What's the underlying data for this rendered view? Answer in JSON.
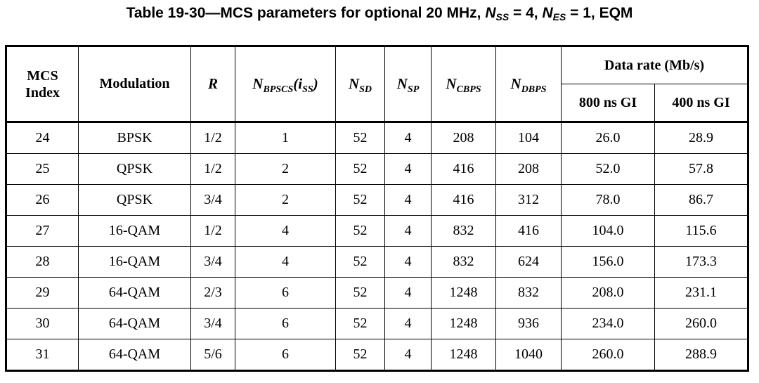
{
  "title": {
    "prefix": "Table 19-30—MCS parameters for optional 20 MHz, ",
    "nss_symbol": "N",
    "nss_sub": "SS",
    "nss_value": " = 4, ",
    "nes_symbol": "N",
    "nes_sub": "ES",
    "nes_value": " = 1, EQM"
  },
  "headers": {
    "mcs_line1": "MCS",
    "mcs_line2": "Index",
    "modulation": "Modulation",
    "r": "R",
    "nbpscs_symbol": "N",
    "nbpscs_sub": "BPSCS",
    "nbpscs_paren_open": "(i",
    "nbpscs_paren_sub": "SS",
    "nbpscs_paren_close": ")",
    "nsd_symbol": "N",
    "nsd_sub": "SD",
    "nsp_symbol": "N",
    "nsp_sub": "SP",
    "ncbps_symbol": "N",
    "ncbps_sub": "CBPS",
    "ndbps_symbol": "N",
    "ndbps_sub": "DBPS",
    "data_rate": "Data rate (Mb/s)",
    "gi800": "800 ns GI",
    "gi400": "400 ns GI"
  },
  "rows": [
    {
      "mcs": "24",
      "mod": "BPSK",
      "r": "1/2",
      "nbpscs": "1",
      "nsd": "52",
      "nsp": "4",
      "ncbps": "208",
      "ndbps": "104",
      "gi800": "26.0",
      "gi400": "28.9"
    },
    {
      "mcs": "25",
      "mod": "QPSK",
      "r": "1/2",
      "nbpscs": "2",
      "nsd": "52",
      "nsp": "4",
      "ncbps": "416",
      "ndbps": "208",
      "gi800": "52.0",
      "gi400": "57.8"
    },
    {
      "mcs": "26",
      "mod": "QPSK",
      "r": "3/4",
      "nbpscs": "2",
      "nsd": "52",
      "nsp": "4",
      "ncbps": "416",
      "ndbps": "312",
      "gi800": "78.0",
      "gi400": "86.7"
    },
    {
      "mcs": "27",
      "mod": "16-QAM",
      "r": "1/2",
      "nbpscs": "4",
      "nsd": "52",
      "nsp": "4",
      "ncbps": "832",
      "ndbps": "416",
      "gi800": "104.0",
      "gi400": "115.6"
    },
    {
      "mcs": "28",
      "mod": "16-QAM",
      "r": "3/4",
      "nbpscs": "4",
      "nsd": "52",
      "nsp": "4",
      "ncbps": "832",
      "ndbps": "624",
      "gi800": "156.0",
      "gi400": "173.3"
    },
    {
      "mcs": "29",
      "mod": "64-QAM",
      "r": "2/3",
      "nbpscs": "6",
      "nsd": "52",
      "nsp": "4",
      "ncbps": "1248",
      "ndbps": "832",
      "gi800": "208.0",
      "gi400": "231.1"
    },
    {
      "mcs": "30",
      "mod": "64-QAM",
      "r": "3/4",
      "nbpscs": "6",
      "nsd": "52",
      "nsp": "4",
      "ncbps": "1248",
      "ndbps": "936",
      "gi800": "234.0",
      "gi400": "260.0"
    },
    {
      "mcs": "31",
      "mod": "64-QAM",
      "r": "5/6",
      "nbpscs": "6",
      "nsd": "52",
      "nsp": "4",
      "ncbps": "1248",
      "ndbps": "1040",
      "gi800": "260.0",
      "gi400": "288.9"
    }
  ]
}
